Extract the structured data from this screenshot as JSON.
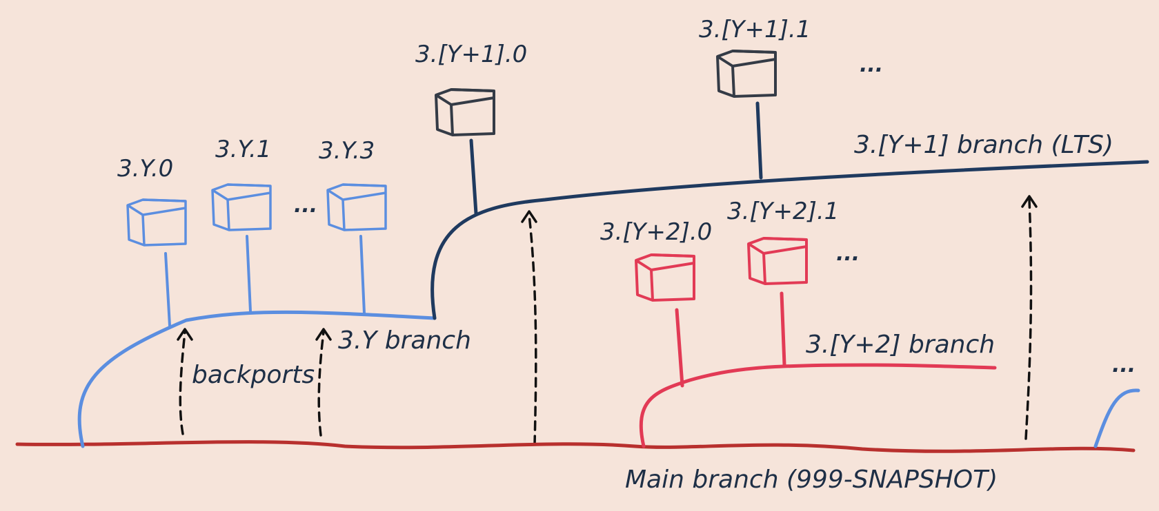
{
  "colors": {
    "background": "#f6e4da",
    "main_branch": "#b8302e",
    "old_branch": "#5b8ee0",
    "lts_branch": "#1f3a5f",
    "new_branch": "#e23a55",
    "release_box_lts": "#343b46",
    "backport_arrow": "#111111",
    "text": "#1e2f46"
  },
  "branches": {
    "main": "Main branch (999-SNAPSHOT)",
    "y": "3.Y branch",
    "y1": "3.[Y+1] branch (LTS)",
    "y2": "3.[Y+2] branch"
  },
  "releases": {
    "y": [
      "3.Y.0",
      "3.Y.1",
      "3.Y.3"
    ],
    "y1": [
      "3.[Y+1].0",
      "3.[Y+1].1"
    ],
    "y2": [
      "3.[Y+2].0",
      "3.[Y+2].1"
    ]
  },
  "annotations": {
    "backports": "backports",
    "ellipsis": "..."
  },
  "icons": [
    "release-box-icon",
    "backport-arrow-icon"
  ]
}
